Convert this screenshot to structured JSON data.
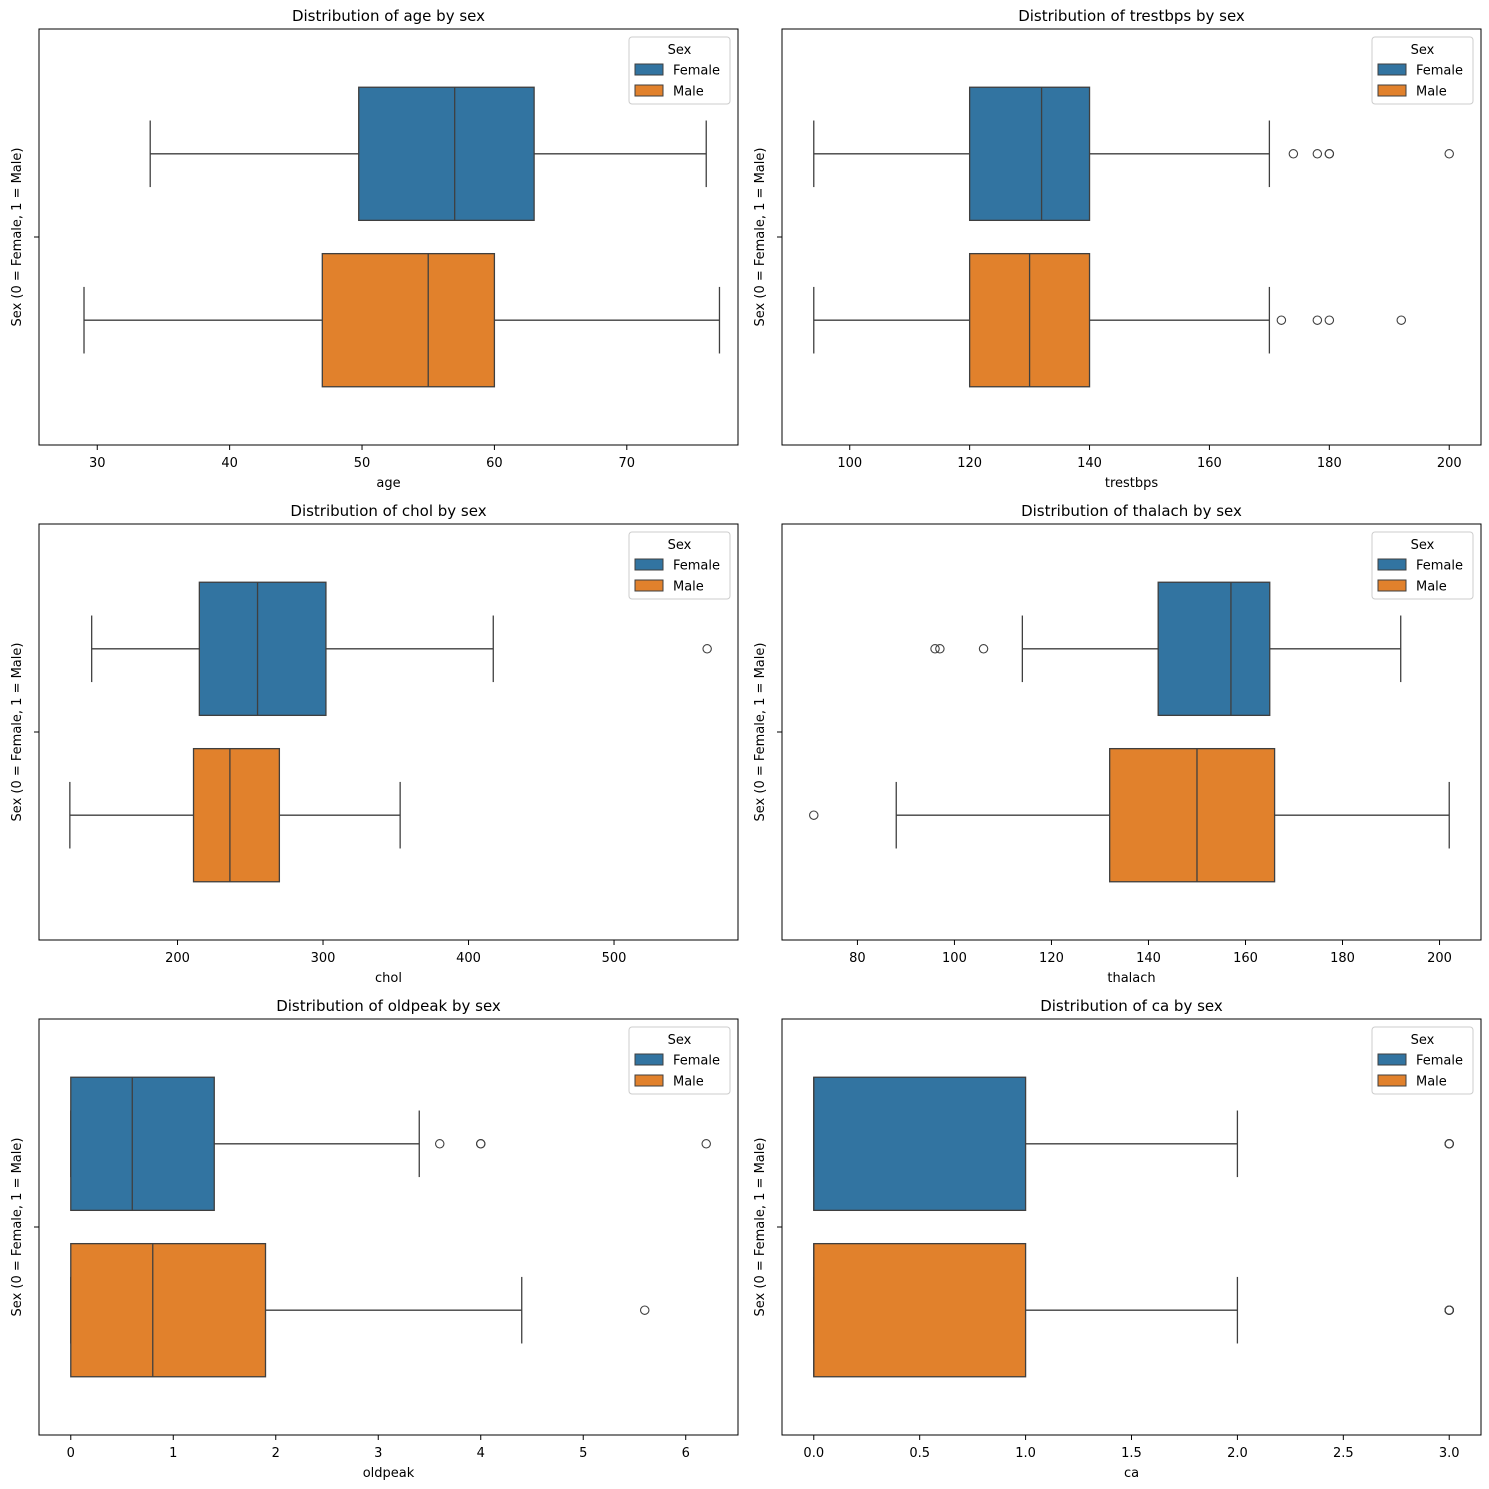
{
  "colors": {
    "female": "#3274a1",
    "male": "#e1812c",
    "line": "#3f3f3f",
    "frame": "#000000"
  },
  "legend": {
    "title": "Sex",
    "entries": [
      "Female",
      "Male"
    ],
    "placement": "upper right"
  },
  "chart_data": [
    {
      "type": "boxplot",
      "title": "Distribution of age by sex",
      "xlabel": "age",
      "ylabel": "Sex (0 = Female, 1 = Male)",
      "xlim": [
        25.6,
        78.4
      ],
      "xticks": [
        30,
        40,
        50,
        60,
        70
      ],
      "tick_labels": [
        "30",
        "40",
        "50",
        "60",
        "70"
      ],
      "series": [
        {
          "name": "Female",
          "whisker_low": 34,
          "q1": 49.75,
          "median": 57,
          "q3": 63,
          "whisker_high": 76,
          "outliers": []
        },
        {
          "name": "Male",
          "whisker_low": 29,
          "q1": 47,
          "median": 55,
          "q3": 60,
          "whisker_high": 77,
          "outliers": []
        }
      ]
    },
    {
      "type": "boxplot",
      "title": "Distribution of trestbps by sex",
      "xlabel": "trestbps",
      "ylabel": "Sex (0 = Female, 1 = Male)",
      "xlim": [
        88.7,
        205.3
      ],
      "xticks": [
        100,
        120,
        140,
        160,
        180,
        200
      ],
      "tick_labels": [
        "100",
        "120",
        "140",
        "160",
        "180",
        "200"
      ],
      "series": [
        {
          "name": "Female",
          "whisker_low": 94,
          "q1": 120,
          "median": 132,
          "q3": 140,
          "whisker_high": 170,
          "outliers": [
            174,
            178,
            180,
            180,
            200
          ]
        },
        {
          "name": "Male",
          "whisker_low": 94,
          "q1": 120,
          "median": 130,
          "q3": 140,
          "whisker_high": 170,
          "outliers": [
            172,
            178,
            180,
            192
          ]
        }
      ]
    },
    {
      "type": "boxplot",
      "title": "Distribution of chol by sex",
      "xlabel": "chol",
      "ylabel": "Sex (0 = Female, 1 = Male)",
      "xlim": [
        104.8,
        585.2
      ],
      "xticks": [
        200,
        300,
        400,
        500
      ],
      "tick_labels": [
        "200",
        "300",
        "400",
        "500"
      ],
      "series": [
        {
          "name": "Female",
          "whisker_low": 141,
          "q1": 215,
          "median": 255,
          "q3": 302,
          "whisker_high": 417,
          "outliers": [
            564
          ]
        },
        {
          "name": "Male",
          "whisker_low": 126,
          "q1": 211,
          "median": 236,
          "q3": 270,
          "whisker_high": 353,
          "outliers": []
        }
      ]
    },
    {
      "type": "boxplot",
      "title": "Distribution of thalach by sex",
      "xlabel": "thalach",
      "ylabel": "Sex (0 = Female, 1 = Male)",
      "xlim": [
        64.45,
        208.55
      ],
      "xticks": [
        80,
        100,
        120,
        140,
        160,
        180,
        200
      ],
      "tick_labels": [
        "80",
        "100",
        "120",
        "140",
        "160",
        "180",
        "200"
      ],
      "series": [
        {
          "name": "Female",
          "whisker_low": 114,
          "q1": 142,
          "median": 157,
          "q3": 165,
          "whisker_high": 192,
          "outliers": [
            96,
            97,
            106
          ]
        },
        {
          "name": "Male",
          "whisker_low": 88,
          "q1": 132,
          "median": 150,
          "q3": 166,
          "whisker_high": 202,
          "outliers": [
            71
          ]
        }
      ]
    },
    {
      "type": "boxplot",
      "title": "Distribution of oldpeak by sex",
      "xlabel": "oldpeak",
      "ylabel": "Sex (0 = Female, 1 = Male)",
      "xlim": [
        -0.31,
        6.51
      ],
      "xticks": [
        0,
        1,
        2,
        3,
        4,
        5,
        6
      ],
      "tick_labels": [
        "0",
        "1",
        "2",
        "3",
        "4",
        "5",
        "6"
      ],
      "series": [
        {
          "name": "Female",
          "whisker_low": 0,
          "q1": 0,
          "median": 0.6,
          "q3": 1.4,
          "whisker_high": 3.4,
          "outliers": [
            3.6,
            4.0,
            4.0,
            6.2
          ]
        },
        {
          "name": "Male",
          "whisker_low": 0,
          "q1": 0,
          "median": 0.8,
          "q3": 1.9,
          "whisker_high": 4.4,
          "outliers": [
            5.6
          ]
        }
      ]
    },
    {
      "type": "boxplot",
      "title": "Distribution of ca by sex",
      "xlabel": "ca",
      "ylabel": "Sex (0 = Female, 1 = Male)",
      "xlim": [
        -0.15,
        3.15
      ],
      "xticks": [
        0,
        0.5,
        1,
        1.5,
        2,
        2.5,
        3
      ],
      "tick_labels": [
        "0.0",
        "0.5",
        "1.0",
        "1.5",
        "2.0",
        "2.5",
        "3.0"
      ],
      "series": [
        {
          "name": "Female",
          "whisker_low": 0,
          "q1": 0,
          "median": 0,
          "q3": 1,
          "whisker_high": 2,
          "outliers": [
            3,
            3,
            3
          ]
        },
        {
          "name": "Male",
          "whisker_low": 0,
          "q1": 0,
          "median": 0,
          "q3": 1,
          "whisker_high": 2,
          "outliers": [
            3,
            3,
            3,
            3
          ]
        }
      ]
    }
  ]
}
